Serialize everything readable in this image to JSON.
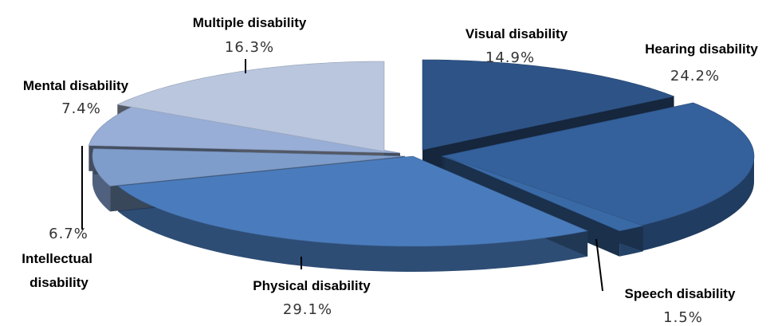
{
  "chart_data": {
    "type": "pie",
    "style": "3d-exploded",
    "slices": [
      {
        "label": "Visual disability",
        "value": 14.9,
        "value_label": "14.9%",
        "color": "#2e5487"
      },
      {
        "label": "Hearing disability",
        "value": 24.2,
        "value_label": "24.2%",
        "color": "#34609b"
      },
      {
        "label": "Speech disability",
        "value": 1.5,
        "value_label": "1.5%",
        "color": "#3a6aa6"
      },
      {
        "label": "Physical disability",
        "value": 29.1,
        "value_label": "29.1%",
        "color": "#4a7cbd"
      },
      {
        "label": "Intellectual disability",
        "value": 6.7,
        "value_label": "6.7%",
        "color": "#7f9dcb"
      },
      {
        "label": "Mental disability",
        "value": 7.4,
        "value_label": "7.4%",
        "color": "#98aed6"
      },
      {
        "label": "Multiple disability",
        "value": 16.3,
        "value_label": "16.3%",
        "color": "#b9c6de"
      }
    ]
  }
}
